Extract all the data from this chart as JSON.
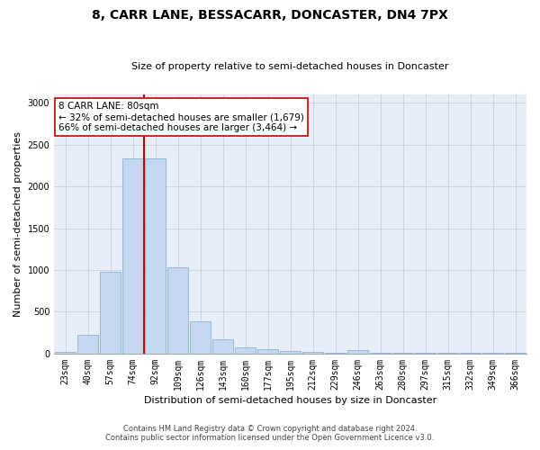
{
  "title": "8, CARR LANE, BESSACARR, DONCASTER, DN4 7PX",
  "subtitle": "Size of property relative to semi-detached houses in Doncaster",
  "xlabel": "Distribution of semi-detached houses by size in Doncaster",
  "ylabel": "Number of semi-detached properties",
  "categories": [
    "23sqm",
    "40sqm",
    "57sqm",
    "74sqm",
    "92sqm",
    "109sqm",
    "126sqm",
    "143sqm",
    "160sqm",
    "177sqm",
    "195sqm",
    "212sqm",
    "229sqm",
    "246sqm",
    "263sqm",
    "280sqm",
    "297sqm",
    "315sqm",
    "332sqm",
    "349sqm",
    "366sqm"
  ],
  "values": [
    25,
    230,
    975,
    2330,
    2330,
    1030,
    390,
    170,
    75,
    50,
    30,
    20,
    15,
    40,
    10,
    5,
    5,
    5,
    5,
    5,
    5
  ],
  "bar_color": "#c5d8f0",
  "bar_edge_color": "#7aaad0",
  "annotation_text": "8 CARR LANE: 80sqm\n← 32% of semi-detached houses are smaller (1,679)\n66% of semi-detached houses are larger (3,464) →",
  "red_line_color": "#cc0000",
  "annotation_box_color": "#ffffff",
  "annotation_box_edge": "#cc0000",
  "footnote1": "Contains HM Land Registry data © Crown copyright and database right 2024.",
  "footnote2": "Contains public sector information licensed under the Open Government Licence v3.0.",
  "ylim": [
    0,
    3100
  ],
  "background_color": "#e8eef8",
  "grid_color": "#c5cfe0",
  "title_fontsize": 10,
  "subtitle_fontsize": 8,
  "ylabel_fontsize": 8,
  "xlabel_fontsize": 8,
  "tick_fontsize": 7,
  "annot_fontsize": 7.5,
  "footnote_fontsize": 6
}
